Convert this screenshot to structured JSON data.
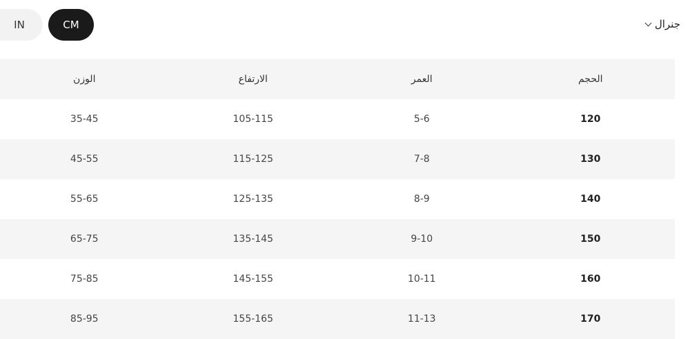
{
  "units": {
    "in_label": "IN",
    "cm_label": "CM",
    "selected": "CM"
  },
  "category": {
    "label": "جنرال",
    "icon": "chevron-down-icon"
  },
  "table": {
    "headers": [
      "الحجم",
      "العمر",
      "الارتفاع",
      "الوزن"
    ],
    "rows": [
      [
        "120",
        "5-6",
        "105-115",
        "35-45"
      ],
      [
        "130",
        "7-8",
        "115-125",
        "45-55"
      ],
      [
        "140",
        "8-9",
        "125-135",
        "55-65"
      ],
      [
        "150",
        "9-10",
        "135-145",
        "65-75"
      ],
      [
        "160",
        "10-11",
        "145-155",
        "75-85"
      ],
      [
        "170",
        "11-13",
        "155-165",
        "85-95"
      ]
    ]
  }
}
